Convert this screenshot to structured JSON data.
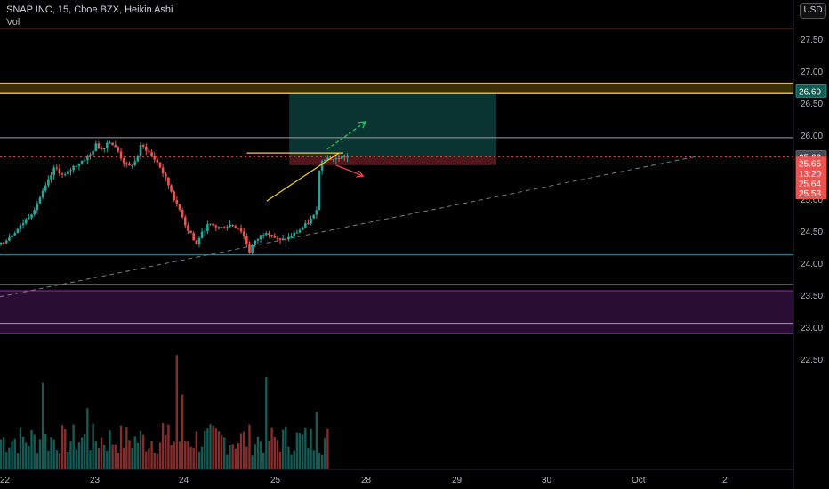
{
  "header": {
    "symbol_line": "SNAP INC, 15, Cboe BZX, Heikin Ashi",
    "volume_label": "Vol",
    "currency_button": "USD"
  },
  "colors": {
    "up": "#26a69a",
    "down": "#ef5350",
    "target_zone": "#0c3d3a",
    "stop_zone": "#5a1a1f",
    "volume_zone": "#2a0d33",
    "resistance_band": "#e8b339",
    "trendline": "#787b86",
    "orange_line": "#e0742c",
    "cyan_line": "#2e8fa3",
    "purple_line": "#9c27b0",
    "yellow_pattern": "#f5d312",
    "green_arrow": "#22c55e",
    "red_arrow": "#ef4444"
  },
  "chart_data": {
    "type": "candlestick",
    "style": "Heikin Ashi",
    "symbol": "SNAP INC",
    "interval": "15",
    "exchange": "Cboe BZX",
    "y_axis": {
      "range": [
        22.3,
        27.85
      ],
      "ticks": [
        "27.50",
        "27.00",
        "26.50",
        "26.00",
        "25.50",
        "25.00",
        "24.50",
        "24.00",
        "23.50",
        "23.00",
        "22.50"
      ]
    },
    "x_axis": {
      "ticks": [
        "22",
        "23",
        "24",
        "25",
        "28",
        "29",
        "30",
        "Oct",
        "2"
      ]
    },
    "price_badges": [
      {
        "label": "26.69",
        "value": 26.69,
        "color": "#0c5d52",
        "border": "#26a69a"
      },
      {
        "label": "25.66",
        "value": 25.66,
        "color": "#444a54",
        "border": "#6b7280"
      },
      {
        "label": "25.65",
        "value": 25.56,
        "color": "#ef5350",
        "border": "#ef5350"
      },
      {
        "label": "13:20",
        "value": 25.4,
        "color": "#ef5350",
        "border": "#ef5350"
      },
      {
        "label": "25.64",
        "value": 25.25,
        "color": "#ef5350",
        "border": "#ef5350"
      },
      {
        "label": "25.53",
        "value": 25.1,
        "color": "#ef5350",
        "border": "#ef5350"
      }
    ],
    "horizontal_levels": [
      {
        "name": "top-orange-line",
        "value": 27.67,
        "color": "#e0742c"
      },
      {
        "name": "resistance-band-top",
        "value": 26.81,
        "color": "#e8b339"
      },
      {
        "name": "resistance-band-bottom",
        "value": 26.65,
        "color": "#e8b339"
      },
      {
        "name": "resistance-gray-line",
        "value": 25.96,
        "color": "#9aa0a6"
      },
      {
        "name": "current-price-dotted",
        "value": 25.66,
        "color": "#c24a3a"
      },
      {
        "name": "support-cyan-line",
        "value": 24.13,
        "color": "#2e8fa3"
      },
      {
        "name": "lower-cyan-line",
        "value": 23.67,
        "color": "#2e8fa3"
      },
      {
        "name": "volume-zone-top",
        "value": 23.57,
        "color": "#9c27b0"
      },
      {
        "name": "volume-zone-bottom",
        "value": 22.9,
        "color": "#9c27b0"
      },
      {
        "name": "volume-zone-mid",
        "value": 23.06,
        "color": "#9aa0a6"
      }
    ],
    "trendline": {
      "from": [
        -0.1,
        23.45
      ],
      "to": [
        7.7,
        25.66
      ]
    },
    "position": {
      "x_start": 3.2,
      "x_end": 5.5,
      "entry": 25.66,
      "target": 26.69,
      "stop": 25.53
    },
    "pattern": {
      "flat_top": {
        "from": [
          2.73,
          25.72
        ],
        "to": [
          3.8,
          25.72
        ]
      },
      "rising_bottom": {
        "from": [
          2.95,
          24.97
        ],
        "to": [
          3.75,
          25.72
        ]
      },
      "up_arrow": {
        "from": [
          3.62,
          25.78
        ],
        "to": [
          4.05,
          26.21
        ]
      },
      "down_arrow": {
        "from": [
          3.72,
          25.53
        ],
        "to": [
          4.02,
          25.36
        ]
      }
    },
    "price_path": [
      [
        0.0,
        24.3
      ],
      [
        0.2,
        24.55
      ],
      [
        0.35,
        24.8
      ],
      [
        0.5,
        25.2
      ],
      [
        0.6,
        25.5
      ],
      [
        0.7,
        25.35
      ],
      [
        0.8,
        25.5
      ],
      [
        0.9,
        25.6
      ],
      [
        1.0,
        25.7
      ],
      [
        1.05,
        25.85
      ],
      [
        1.12,
        25.78
      ],
      [
        1.2,
        25.92
      ],
      [
        1.3,
        25.75
      ],
      [
        1.35,
        25.6
      ],
      [
        1.42,
        25.5
      ],
      [
        1.5,
        25.6
      ],
      [
        1.55,
        25.82
      ],
      [
        1.6,
        25.8
      ],
      [
        1.66,
        25.7
      ],
      [
        1.75,
        25.55
      ],
      [
        1.85,
        25.25
      ],
      [
        1.9,
        25.1
      ],
      [
        1.95,
        24.9
      ],
      [
        2.0,
        24.8
      ],
      [
        2.06,
        24.55
      ],
      [
        2.12,
        24.45
      ],
      [
        2.16,
        24.25
      ],
      [
        2.2,
        24.4
      ],
      [
        2.3,
        24.6
      ],
      [
        2.45,
        24.55
      ],
      [
        2.55,
        24.6
      ],
      [
        2.65,
        24.55
      ],
      [
        2.72,
        24.35
      ],
      [
        2.75,
        24.15
      ],
      [
        2.8,
        24.3
      ],
      [
        2.9,
        24.45
      ],
      [
        2.95,
        24.5
      ],
      [
        3.0,
        24.45
      ],
      [
        3.05,
        24.38
      ],
      [
        3.1,
        24.35
      ],
      [
        3.2,
        24.4
      ],
      [
        3.3,
        24.5
      ],
      [
        3.4,
        24.62
      ],
      [
        3.5,
        24.78
      ],
      [
        3.52,
        25.3
      ],
      [
        3.55,
        25.6
      ],
      [
        3.6,
        25.65
      ],
      [
        3.7,
        25.62
      ],
      [
        3.8,
        25.66
      ],
      [
        3.85,
        25.66
      ]
    ],
    "volume": {
      "max": 1.0,
      "bars": 220
    }
  }
}
